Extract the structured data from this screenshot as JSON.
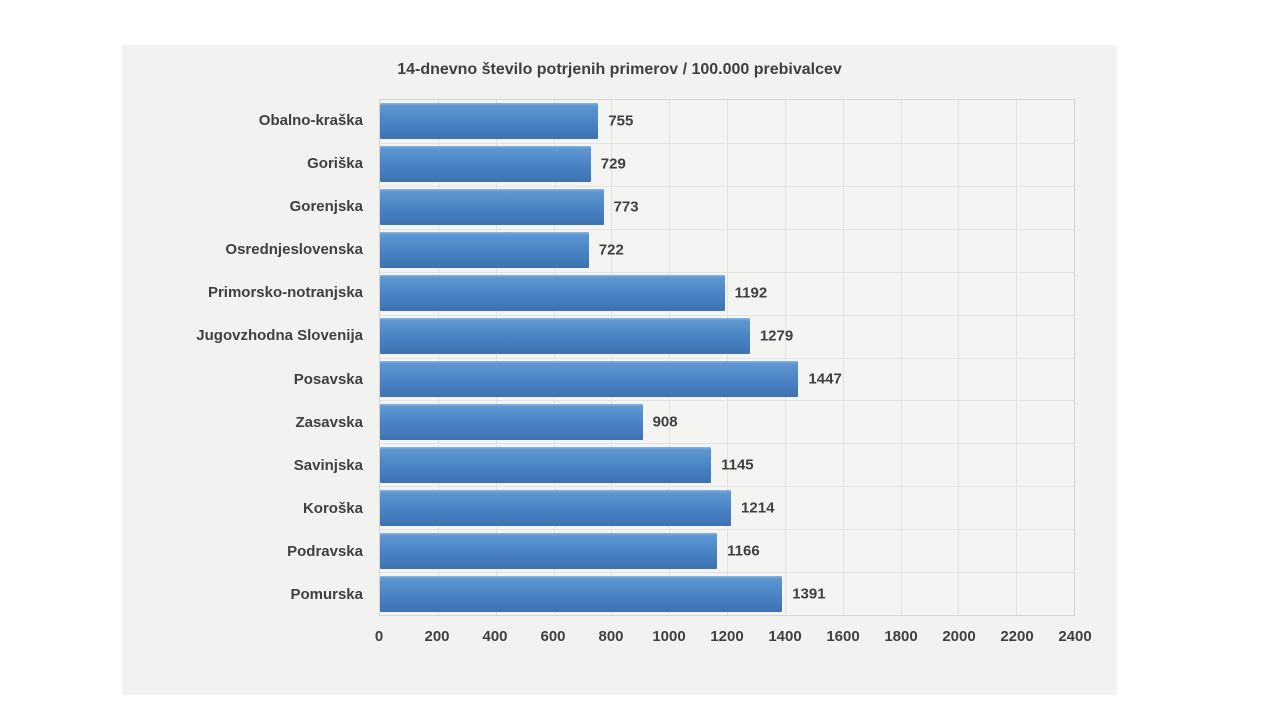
{
  "chart_data": {
    "type": "bar",
    "orientation": "horizontal",
    "title": "14-dnevno število potrjenih primerov / 100.000 prebivalcev",
    "categories": [
      "Obalno-kraška",
      "Goriška",
      "Gorenjska",
      "Osrednjeslovenska",
      "Primorsko-notranjska",
      "Jugovzhodna Slovenija",
      "Posavska",
      "Zasavska",
      "Savinjska",
      "Koroška",
      "Podravska",
      "Pomurska"
    ],
    "values": [
      755,
      729,
      773,
      722,
      1192,
      1279,
      1447,
      908,
      1145,
      1214,
      1166,
      1391
    ],
    "xlabel": "",
    "ylabel": "",
    "xlim": [
      0,
      2400
    ],
    "xticks": [
      0,
      200,
      400,
      600,
      800,
      1000,
      1200,
      1400,
      1600,
      1800,
      2000,
      2200,
      2400
    ],
    "grid": true,
    "data_labels": true,
    "legend": "none",
    "colors": {
      "bar_fill": "#4c87c7",
      "text": "#404040",
      "panel_background": "#f2f2f1",
      "plot_background": "#f4f4f3",
      "gridline": "#e2e2e1",
      "plot_border": "#d5d5d4"
    }
  }
}
